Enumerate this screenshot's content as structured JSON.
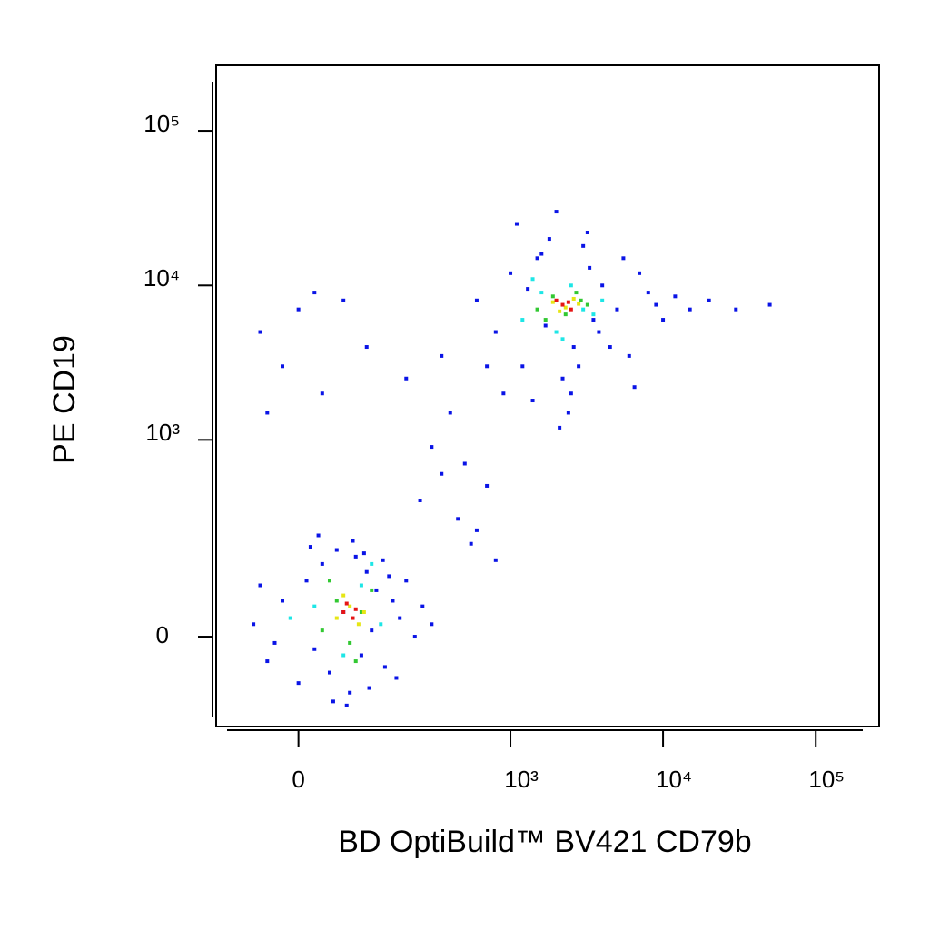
{
  "chart_data": {
    "type": "scatter",
    "x_label": "BD OptiBuild™ BV421 CD79b",
    "y_label": "PE CD19",
    "xscale": "biexponential",
    "yscale": "biexponential",
    "xlim": [
      -130,
      260000
    ],
    "ylim": [
      -190,
      265000
    ],
    "xticks": [
      0,
      {
        "value": 1000,
        "label": "10³"
      },
      {
        "value": 10000,
        "label": "10⁴"
      },
      {
        "value": 100000,
        "label": "10⁵"
      }
    ],
    "yticks": [
      0,
      {
        "value": 1000,
        "label": "10³"
      },
      {
        "value": 10000,
        "label": "10⁴"
      },
      {
        "value": 100000,
        "label": "10⁵"
      }
    ],
    "series": [
      {
        "color": "#0a14e6",
        "x": [
          -60,
          -40,
          -20,
          0,
          10,
          20,
          30,
          40,
          50,
          60,
          70,
          80,
          90,
          100,
          110,
          120,
          140,
          160,
          180,
          200,
          230,
          260,
          300,
          -30,
          15,
          45,
          75,
          105,
          135,
          170,
          -50,
          25,
          65,
          95,
          150,
          250,
          350,
          450,
          600,
          300,
          400,
          500,
          700,
          200,
          350,
          550,
          800,
          -50,
          -20,
          0,
          30,
          60,
          100,
          -40,
          20,
          600,
          800,
          1000,
          1200,
          1500,
          1800,
          2200,
          2600,
          3000,
          3500,
          4000,
          5000,
          6000,
          7000,
          8000,
          10000,
          12000,
          15000,
          20000,
          700,
          900,
          1100,
          1400,
          1700,
          2000,
          2400,
          2800,
          3300,
          3800,
          4500,
          5500,
          6500,
          9000,
          1300,
          1600,
          2100,
          2500,
          3200,
          50000,
          30000
        ],
        "values": [
          20,
          -40,
          60,
          -80,
          100,
          -20,
          140,
          -60,
          180,
          40,
          -100,
          160,
          -30,
          120,
          10,
          80,
          -50,
          60,
          30,
          100,
          0,
          50,
          20,
          -10,
          190,
          -120,
          210,
          -90,
          150,
          -70,
          90,
          230,
          -130,
          170,
          110,
          400,
          600,
          300,
          250,
          900,
          1500,
          700,
          500,
          2500,
          3500,
          200,
          150,
          5000,
          3000,
          7000,
          2000,
          8000,
          4000,
          1500,
          9000,
          8000,
          5000,
          12000,
          3000,
          15000,
          20000,
          2500,
          4000,
          18000,
          6000,
          10000,
          7000,
          3500,
          12000,
          9000,
          6000,
          8500,
          7000,
          8000,
          3000,
          2000,
          25000,
          1800,
          5500,
          30000,
          1500,
          3000,
          13000,
          5000,
          4000,
          15000,
          2200,
          7500,
          9500,
          16000,
          1200,
          2000,
          22000,
          7500,
          7000
        ]
      },
      {
        "color": "#1ee6e6",
        "x": [
          20,
          60,
          90,
          130,
          -10,
          110,
          1200,
          1600,
          2000,
          2500,
          3000,
          4000,
          1400,
          2200,
          3500
        ],
        "values": [
          50,
          -30,
          90,
          20,
          30,
          140,
          6000,
          9000,
          5000,
          10000,
          7000,
          8000,
          11000,
          4500,
          6500
        ]
      },
      {
        "color": "#32c832",
        "x": [
          30,
          50,
          70,
          90,
          110,
          40,
          80,
          1500,
          1900,
          2300,
          2700,
          3200,
          1700,
          2900
        ],
        "values": [
          10,
          60,
          -10,
          40,
          80,
          100,
          -40,
          7000,
          8500,
          6500,
          9000,
          7500,
          6000,
          8000
        ]
      },
      {
        "color": "#e6e614",
        "x": [
          50,
          70,
          85,
          60,
          95,
          1900,
          2300,
          2600,
          2100,
          2800
        ],
        "values": [
          30,
          50,
          20,
          70,
          40,
          7800,
          7200,
          8200,
          6800,
          7600
        ]
      },
      {
        "color": "#e61414",
        "x": [
          60,
          75,
          65,
          80,
          2200,
          2500,
          2000,
          2400
        ],
        "values": [
          40,
          30,
          55,
          45,
          7500,
          7000,
          8000,
          7800
        ]
      }
    ]
  }
}
